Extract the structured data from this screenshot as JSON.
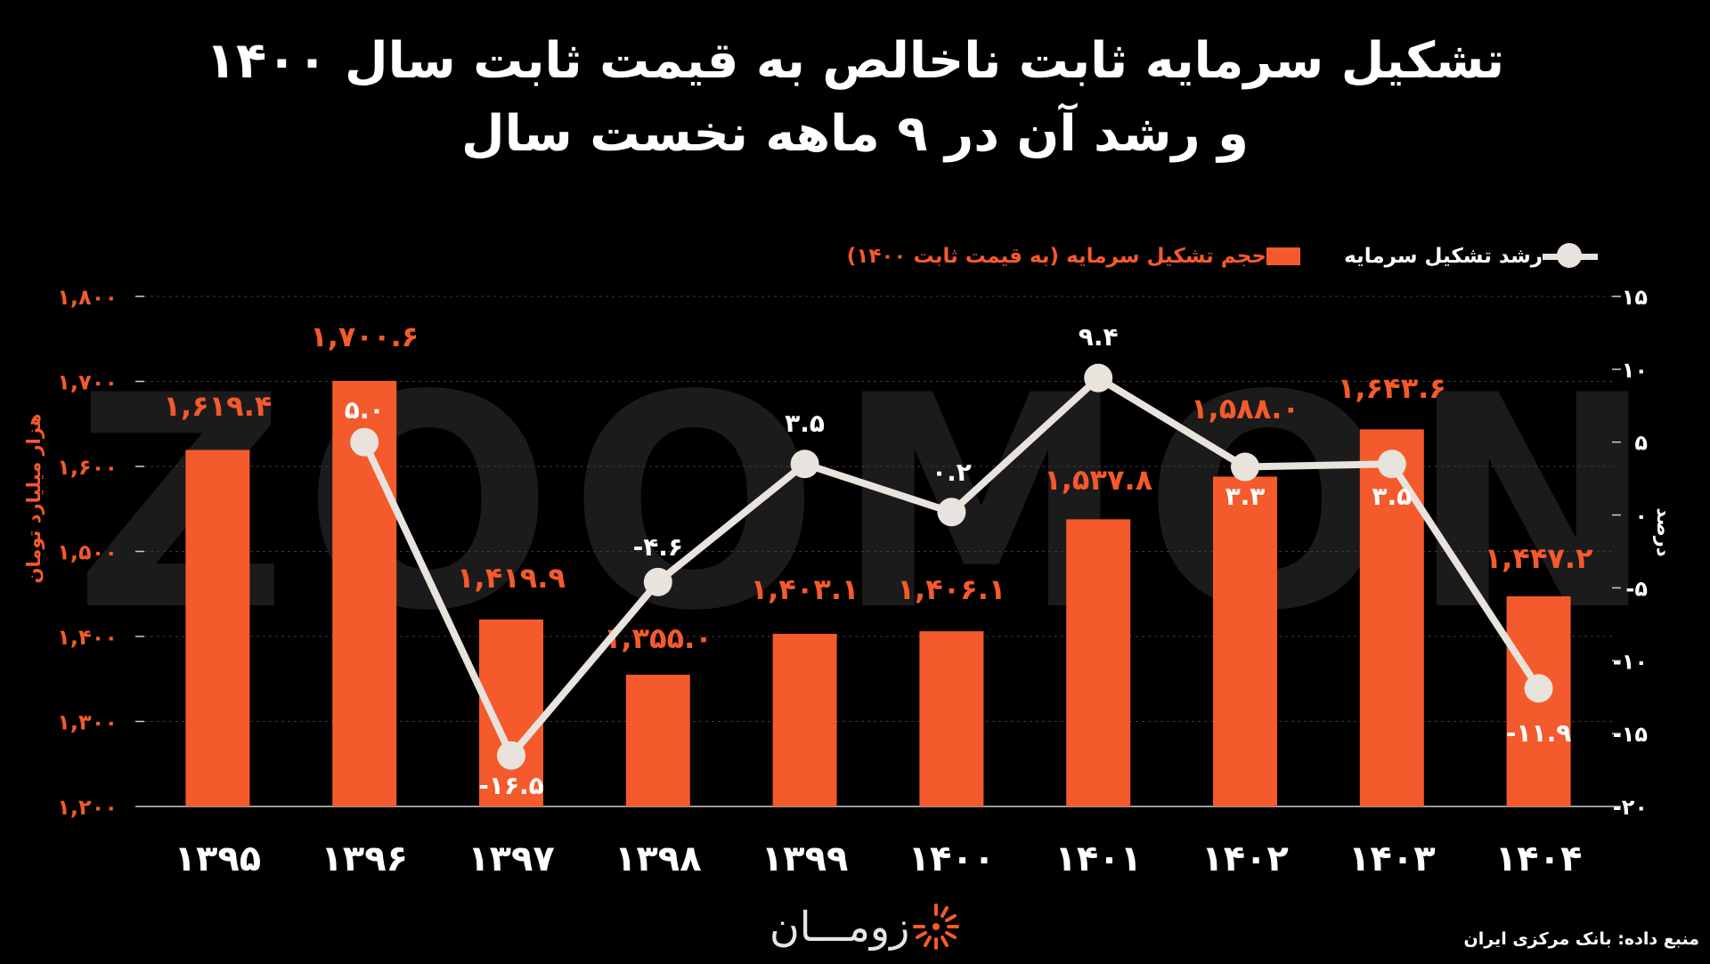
{
  "title": {
    "line1": "تشکیل سرمایه ثابت ناخالص به قیمت ثابت سال ۱۴۰۰",
    "line2": "و رشد آن در ۹ ماهه نخست سال"
  },
  "legend": {
    "growth": "رشد تشکیل سرمایه",
    "volume": "حجم تشکیل سرمایه (به قیمت ثابت ۱۴۰۰)"
  },
  "watermark": "ZOOMON",
  "logo_text": "زومـــان",
  "source": "منبع داده: بانک مرکزی ایران",
  "colors": {
    "background": "#000000",
    "bar": "#f45a2c",
    "line": "#e8e3dc",
    "grid": "#3a3a3a"
  },
  "chart_data": {
    "type": "bar",
    "categories": [
      "۱۳۹۵",
      "۱۳۹۶",
      "۱۳۹۷",
      "۱۳۹۸",
      "۱۳۹۹",
      "۱۴۰۰",
      "۱۴۰۱",
      "۱۴۰۲",
      "۱۴۰۳",
      "۱۴۰۴"
    ],
    "bar_series": {
      "name": "حجم تشکیل سرمایه (به قیمت ثابت ۱۴۰۰)",
      "values": [
        1619.4,
        1700.6,
        1419.9,
        1355.0,
        1403.1,
        1406.1,
        1537.8,
        1588.0,
        1643.6,
        1447.2
      ],
      "labels": [
        "۱,۶۱۹.۴",
        "۱,۷۰۰.۶",
        "۱,۴۱۹.۹",
        "۱,۳۵۵.۰",
        "۱,۴۰۳.۱",
        "۱,۴۰۶.۱",
        "۱,۵۳۷.۸",
        "۱,۵۸۸.۰",
        "۱,۶۴۳.۶",
        "۱,۴۴۷.۲"
      ]
    },
    "line_series": {
      "name": "رشد تشکیل سرمایه",
      "values": [
        null,
        5.0,
        -16.5,
        -4.6,
        3.5,
        0.2,
        9.4,
        3.3,
        3.5,
        -11.9
      ],
      "labels": [
        "",
        "۵.۰",
        "-۱۶.۵",
        "-۴.۶",
        "۳.۵",
        "۰.۲",
        "۹.۴",
        "۳.۳",
        "۳.۵",
        "-۱۱.۹"
      ]
    },
    "y_left": {
      "label": "هزار میلیارد تومان",
      "min": 1200,
      "max": 1800,
      "ticks": [
        1200,
        1300,
        1400,
        1500,
        1600,
        1700,
        1800
      ],
      "tick_labels": [
        "۱,۲۰۰",
        "۱,۳۰۰",
        "۱,۴۰۰",
        "۱,۵۰۰",
        "۱,۶۰۰",
        "۱,۷۰۰",
        "۱,۸۰۰"
      ]
    },
    "y_right": {
      "label": "درصد",
      "min": -20,
      "max": 15,
      "ticks": [
        -20,
        -15,
        -10,
        -5,
        0,
        5,
        10,
        15
      ],
      "tick_labels": [
        "-۲۰",
        "-۱۵",
        "-۱۰",
        "-۵",
        "۰",
        "۵",
        "۱۰",
        "۱۵"
      ]
    },
    "grid": true,
    "legend_position": "top-right"
  }
}
